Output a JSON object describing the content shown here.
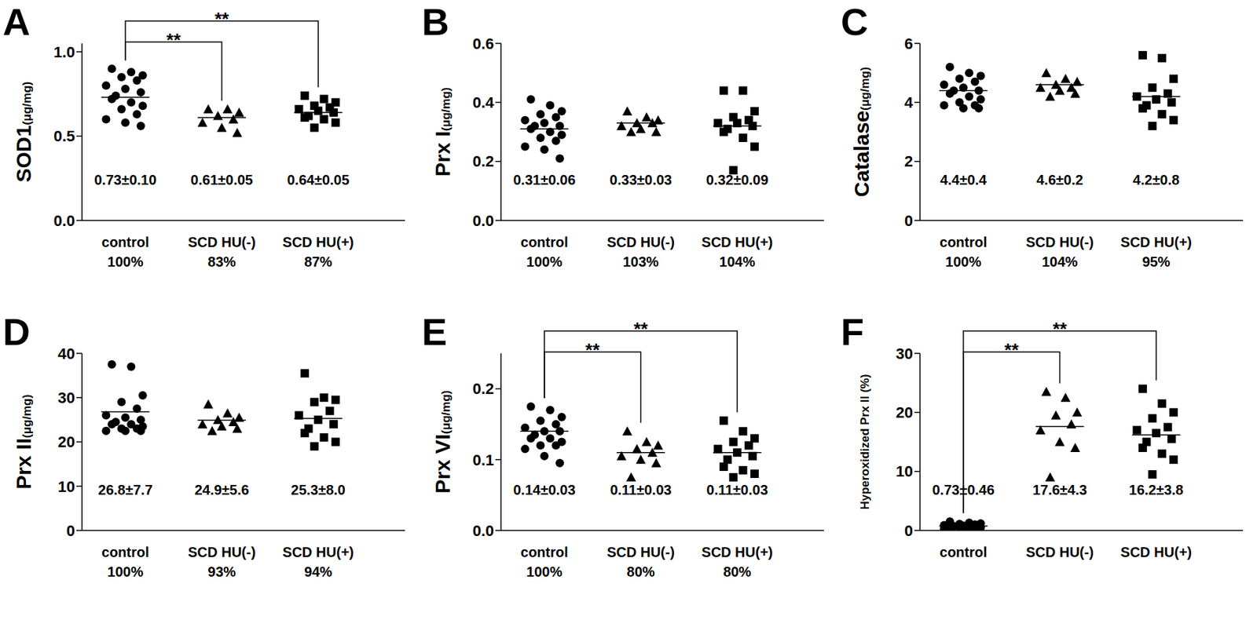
{
  "chart_data": [
    {
      "title": "A",
      "type": "scatter",
      "y_label": "SOD1",
      "y_unit": "(μg/mg)",
      "color": "#000000",
      "ylim": [
        0,
        1.05
      ],
      "yticks": [
        {
          "value": 0,
          "label": "0.0"
        },
        {
          "value": 0.5,
          "label": "0.5"
        },
        {
          "value": 1,
          "label": "1.0"
        }
      ],
      "series": [
        {
          "name": "control",
          "marker": "circle",
          "percent_label": "100%",
          "mean": 0.73,
          "mean_label": "0.73±0.10",
          "values": [
            0.9,
            0.88,
            0.86,
            0.85,
            0.83,
            0.8,
            0.78,
            0.76,
            0.74,
            0.72,
            0.7,
            0.68,
            0.66,
            0.63,
            0.6,
            0.58,
            0.56
          ]
        },
        {
          "name": "SCD HU(-)",
          "marker": "triangle",
          "percent_label": "83%",
          "mean": 0.61,
          "mean_label": "0.61±0.05",
          "values": [
            0.66,
            0.66,
            0.64,
            0.62,
            0.6,
            0.58,
            0.55,
            0.52
          ]
        },
        {
          "name": "SCD HU(+)",
          "marker": "square",
          "percent_label": "87%",
          "mean": 0.64,
          "mean_label": "0.64±0.05",
          "values": [
            0.74,
            0.72,
            0.7,
            0.68,
            0.67,
            0.66,
            0.65,
            0.64,
            0.62,
            0.61,
            0.6,
            0.58,
            0.55
          ]
        }
      ],
      "significance": [
        {
          "from": 0,
          "to": 1,
          "label": "**"
        },
        {
          "from": 0,
          "to": 2,
          "label": "**"
        }
      ]
    },
    {
      "title": "B",
      "type": "scatter",
      "y_label": "Prx I",
      "y_unit": "(μg/mg)",
      "color": "#000000",
      "ylim": [
        0,
        0.6
      ],
      "yticks": [
        {
          "value": 0,
          "label": "0.0"
        },
        0.2,
        0.4,
        0.6
      ],
      "series": [
        {
          "name": "control",
          "marker": "circle",
          "percent_label": "100%",
          "mean": 0.31,
          "mean_label": "0.31±0.06",
          "values": [
            0.41,
            0.39,
            0.37,
            0.36,
            0.35,
            0.34,
            0.33,
            0.32,
            0.32,
            0.31,
            0.3,
            0.29,
            0.28,
            0.27,
            0.25,
            0.24,
            0.21
          ]
        },
        {
          "name": "SCD HU(-)",
          "marker": "triangle",
          "percent_label": "103%",
          "mean": 0.33,
          "mean_label": "0.33±0.03",
          "values": [
            0.37,
            0.35,
            0.34,
            0.33,
            0.33,
            0.32,
            0.31,
            0.3,
            0.3
          ]
        },
        {
          "name": "SCD HU(+)",
          "marker": "square",
          "percent_label": "104%",
          "mean": 0.32,
          "mean_label": "0.32±0.09",
          "values": [
            0.44,
            0.44,
            0.37,
            0.35,
            0.34,
            0.33,
            0.33,
            0.32,
            0.31,
            0.3,
            0.28,
            0.25,
            0.17
          ]
        }
      ],
      "significance": []
    },
    {
      "title": "C",
      "type": "scatter",
      "y_label": "Catalase",
      "y_unit": "(μg/mg)",
      "color": "#000000",
      "ylim": [
        0,
        6
      ],
      "yticks": [
        0,
        2,
        4,
        6
      ],
      "series": [
        {
          "name": "control",
          "marker": "circle",
          "percent_label": "100%",
          "mean": 4.4,
          "mean_label": "4.4±0.4",
          "values": [
            5.2,
            5.0,
            4.9,
            4.8,
            4.7,
            4.6,
            4.5,
            4.4,
            4.4,
            4.3,
            4.2,
            4.1,
            4.0,
            3.9,
            3.9,
            3.8,
            3.8
          ]
        },
        {
          "name": "SCD HU(-)",
          "marker": "triangle",
          "percent_label": "104%",
          "mean": 4.6,
          "mean_label": "4.6±0.2",
          "values": [
            5.0,
            4.8,
            4.7,
            4.6,
            4.5,
            4.5,
            4.4,
            4.3,
            4.2
          ]
        },
        {
          "name": "SCD HU(+)",
          "marker": "square",
          "percent_label": "95%",
          "mean": 4.2,
          "mean_label": "4.2±0.8",
          "values": [
            5.6,
            5.5,
            4.8,
            4.5,
            4.3,
            4.2,
            4.1,
            4.0,
            3.9,
            3.8,
            3.6,
            3.4,
            3.2
          ]
        }
      ],
      "significance": []
    },
    {
      "title": "D",
      "type": "scatter",
      "y_label": "Prx II",
      "y_unit": "(μg/mg)",
      "color": "#000000",
      "ylim": [
        0,
        40
      ],
      "yticks": [
        0,
        10,
        20,
        30,
        40
      ],
      "series": [
        {
          "name": "control",
          "marker": "circle",
          "percent_label": "100%",
          "mean": 26.8,
          "mean_label": "26.8±7.7",
          "values": [
            37.5,
            37,
            30.5,
            29,
            27.5,
            26,
            25.5,
            25,
            24.5,
            24,
            24,
            23.5,
            23,
            23,
            22.5,
            22.5,
            22.5
          ]
        },
        {
          "name": "SCD HU(-)",
          "marker": "triangle",
          "percent_label": "93%",
          "mean": 24.9,
          "mean_label": "24.9±5.6",
          "values": [
            28.5,
            26.5,
            25.5,
            25,
            24.5,
            24,
            23.5,
            23,
            22.5
          ]
        },
        {
          "name": "SCD HU(+)",
          "marker": "square",
          "percent_label": "94%",
          "mean": 25.3,
          "mean_label": "25.3±8.0",
          "values": [
            35.5,
            30,
            29.5,
            29,
            27,
            26,
            25,
            24,
            23,
            22,
            21,
            20,
            19
          ]
        }
      ],
      "significance": []
    },
    {
      "title": "E",
      "type": "scatter",
      "y_label": "Prx VI",
      "y_unit": "(μg/mg)",
      "color": "#000000",
      "ylim": [
        0,
        0.25
      ],
      "yticks": [
        {
          "value": 0,
          "label": "0.0"
        },
        0.1,
        0.2
      ],
      "series": [
        {
          "name": "control",
          "marker": "circle",
          "percent_label": "100%",
          "mean": 0.14,
          "mean_label": "0.14±0.03",
          "values": [
            0.175,
            0.17,
            0.16,
            0.155,
            0.15,
            0.145,
            0.14,
            0.14,
            0.135,
            0.13,
            0.13,
            0.125,
            0.12,
            0.12,
            0.115,
            0.105,
            0.095
          ]
        },
        {
          "name": "SCD HU(-)",
          "marker": "triangle",
          "percent_label": "80%",
          "mean": 0.11,
          "mean_label": "0.11±0.03",
          "values": [
            0.14,
            0.125,
            0.12,
            0.115,
            0.11,
            0.105,
            0.1,
            0.095,
            0.075
          ]
        },
        {
          "name": "SCD HU(+)",
          "marker": "square",
          "percent_label": "80%",
          "mean": 0.11,
          "mean_label": "0.11±0.03",
          "values": [
            0.155,
            0.14,
            0.13,
            0.125,
            0.12,
            0.115,
            0.11,
            0.105,
            0.1,
            0.09,
            0.085,
            0.08,
            0.075
          ]
        }
      ],
      "significance": [
        {
          "from": 0,
          "to": 1,
          "label": "**"
        },
        {
          "from": 0,
          "to": 2,
          "label": "**"
        }
      ]
    },
    {
      "title": "F",
      "type": "scatter",
      "y_label": "Hyperoxidized Prx II (%)",
      "color": "#000000",
      "ylim": [
        0,
        30
      ],
      "yticks": [
        0,
        10,
        20,
        30
      ],
      "series": [
        {
          "name": "control",
          "marker": "circle",
          "mean": 0.73,
          "mean_label": "0.73±0.46",
          "values": [
            1.5,
            1.3,
            1.2,
            1.1,
            1.0,
            0.9,
            0.8,
            0.8,
            0.7,
            0.7,
            0.6,
            0.5,
            0.5,
            0.4,
            0.3,
            0.3,
            0.2
          ]
        },
        {
          "name": "SCD HU(-)",
          "marker": "triangle",
          "mean": 17.6,
          "mean_label": "17.6±4.3",
          "values": [
            23.5,
            22.5,
            20,
            19.5,
            18,
            17,
            15,
            14,
            9
          ]
        },
        {
          "name": "SCD HU(+)",
          "marker": "square",
          "mean": 16.2,
          "mean_label": "16.2±3.8",
          "values": [
            24,
            21.5,
            20,
            19,
            17.5,
            17,
            16.5,
            15.5,
            15,
            14,
            13,
            12,
            9.5
          ]
        }
      ],
      "significance": [
        {
          "from": 0,
          "to": 1,
          "label": "**"
        },
        {
          "from": 0,
          "to": 2,
          "label": "**"
        }
      ]
    }
  ]
}
